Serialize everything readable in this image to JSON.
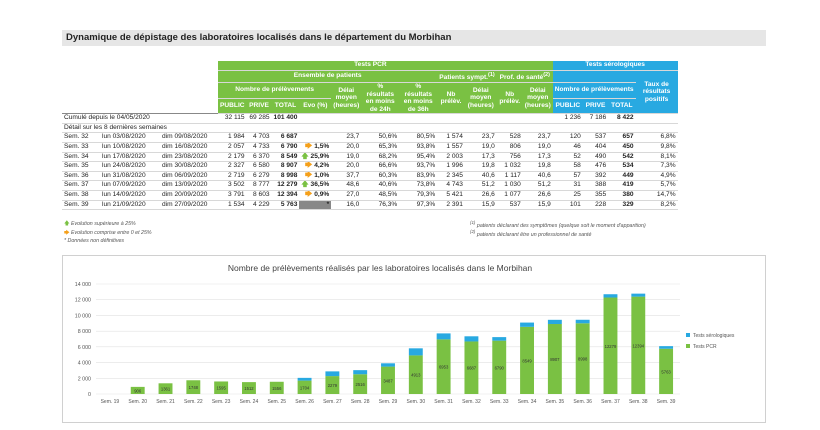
{
  "title": "Dynamique de dépistage des laboratoires localisés dans le département du Morbihan",
  "header": {
    "pcr": "Tests PCR",
    "sero": "Tests sérologiques",
    "ensemble": "Ensemble de patients",
    "nb_prel": "Nombre de prélèvements",
    "delai": "Délai moyen (heures)",
    "pct24": "% résultats en moins de 24h",
    "pct36": "% résultats en moins de 36h",
    "evo": "Evo (%)",
    "symp": "Patients sympt.",
    "symp_sup": "(1)",
    "prof": "Prof. de santé",
    "prof_sup": "(2)",
    "nbprel_short": "Nb prélèv.",
    "delai_short": "Délai moyen (heures)",
    "sero_nb": "Nombre de prélèvements",
    "taux": "Taux de résultats positifs",
    "public": "PUBLIC",
    "prive": "PRIVE",
    "total": "TOTAL"
  },
  "cumul": {
    "label": "Cumulé depuis le 04/05/2020",
    "public": "32 115",
    "prive": "69 285",
    "total": "101 400",
    "s_public": "1 236",
    "s_prive": "7 186",
    "s_total": "8 422"
  },
  "detail_label": "Détail sur les 8 dernières semaines",
  "rows": [
    {
      "sem": "Sem. 32",
      "from": "lun 03/08/2020",
      "to": "dim 09/08/2020",
      "pub": "1 984",
      "pri": "4 703",
      "tot": "6 687",
      "evo": "",
      "arrow": "",
      "delai": "23,7",
      "p24": "50,6%",
      "p36": "80,5%",
      "sn": "1 574",
      "sd": "23,7",
      "pn": "528",
      "pd": "23,7",
      "s_pub": "120",
      "s_pri": "537",
      "s_tot": "657",
      "taux": "6,8%"
    },
    {
      "sem": "Sem. 33",
      "from": "lun 10/08/2020",
      "to": "dim 16/08/2020",
      "pub": "2 057",
      "pri": "4 733",
      "tot": "6 790",
      "evo": "1,5%",
      "arrow": "right",
      "delai": "20,0",
      "p24": "65,3%",
      "p36": "93,8%",
      "sn": "1 557",
      "sd": "19,0",
      "pn": "806",
      "pd": "19,0",
      "s_pub": "46",
      "s_pri": "404",
      "s_tot": "450",
      "taux": "9,8%"
    },
    {
      "sem": "Sem. 34",
      "from": "lun 17/08/2020",
      "to": "dim 23/08/2020",
      "pub": "2 179",
      "pri": "6 370",
      "tot": "8 549",
      "evo": "25,9%",
      "arrow": "up",
      "delai": "19,0",
      "p24": "68,2%",
      "p36": "95,4%",
      "sn": "2 003",
      "sd": "17,3",
      "pn": "756",
      "pd": "17,3",
      "s_pub": "52",
      "s_pri": "490",
      "s_tot": "542",
      "taux": "8,1%"
    },
    {
      "sem": "Sem. 35",
      "from": "lun 24/08/2020",
      "to": "dim 30/08/2020",
      "pub": "2 327",
      "pri": "6 580",
      "tot": "8 907",
      "evo": "4,2%",
      "arrow": "right",
      "delai": "20,0",
      "p24": "66,6%",
      "p36": "93,7%",
      "sn": "1 996",
      "sd": "19,8",
      "pn": "1 032",
      "pd": "19,8",
      "s_pub": "58",
      "s_pri": "476",
      "s_tot": "534",
      "taux": "7,3%"
    },
    {
      "sem": "Sem. 36",
      "from": "lun 31/08/2020",
      "to": "dim 06/09/2020",
      "pub": "2 719",
      "pri": "6 279",
      "tot": "8 998",
      "evo": "1,0%",
      "arrow": "right",
      "delai": "37,7",
      "p24": "60,3%",
      "p36": "83,9%",
      "sn": "2 345",
      "sd": "40,6",
      "pn": "1 117",
      "pd": "40,6",
      "s_pub": "57",
      "s_pri": "392",
      "s_tot": "449",
      "taux": "4,9%"
    },
    {
      "sem": "Sem. 37",
      "from": "lun 07/09/2020",
      "to": "dim 13/09/2020",
      "pub": "3 502",
      "pri": "8 777",
      "tot": "12 279",
      "evo": "36,5%",
      "arrow": "up",
      "delai": "48,6",
      "p24": "40,6%",
      "p36": "73,8%",
      "sn": "4 743",
      "sd": "51,2",
      "pn": "1 030",
      "pd": "51,2",
      "s_pub": "31",
      "s_pri": "388",
      "s_tot": "419",
      "taux": "5,7%"
    },
    {
      "sem": "Sem. 38",
      "from": "lun 14/09/2020",
      "to": "dim 20/09/2020",
      "pub": "3 791",
      "pri": "8 603",
      "tot": "12 394",
      "evo": "0,9%",
      "arrow": "right",
      "delai": "27,0",
      "p24": "48,5%",
      "p36": "79,3%",
      "sn": "5 421",
      "sd": "26,6",
      "pn": "1 077",
      "pd": "26,6",
      "s_pub": "25",
      "s_pri": "355",
      "s_tot": "380",
      "taux": "14,7%"
    },
    {
      "sem": "Sem. 39",
      "from": "lun 21/09/2020",
      "to": "dim 27/09/2020",
      "pub": "1 534",
      "pri": "4 229",
      "tot": "5 763",
      "evo": "*",
      "arrow": "",
      "delai": "16,0",
      "p24": "76,3%",
      "p36": "97,3%",
      "sn": "2 391",
      "sd": "15,9",
      "pn": "537",
      "pd": "15,9",
      "s_pub": "101",
      "s_pri": "228",
      "s_tot": "329",
      "taux": "8,2%"
    }
  ],
  "notes": {
    "up": "Evolution supérieure à 25%",
    "right": "Evolution comprise entre 0 et 25%",
    "star": "* Données non définitives",
    "n1_sup": "(1)",
    "n1": "patients déclarant des symptômes (quelque soit le moment d'apparition)",
    "n2_sup": "(2)",
    "n2": "patients déclarant être un professionnel de santé"
  },
  "colors": {
    "green": "#7ac143",
    "blue": "#28a9e1",
    "orange": "#f5a01a"
  },
  "chart_data": {
    "type": "bar",
    "stacked": true,
    "title": "Nombre de prélèvements réalisés par les laboratoires localisés dans le Morbihan",
    "categories": [
      "Sem. 19",
      "Sem. 20",
      "Sem. 21",
      "Sem. 22",
      "Sem. 23",
      "Sem. 24",
      "Sem. 25",
      "Sem. 26",
      "Sem. 27",
      "Sem. 28",
      "Sem. 29",
      "Sem. 30",
      "Sem. 31",
      "Sem. 32",
      "Sem. 33",
      "Sem. 34",
      "Sem. 35",
      "Sem. 36",
      "Sem. 37",
      "Sem. 38",
      "Sem. 39"
    ],
    "series": [
      {
        "name": "Tests PCR",
        "values": [
          0,
          906,
          1361,
          1748,
          1595,
          1512,
          1556,
          1704,
          2279,
          2516,
          3487,
          4913,
          6953,
          6687,
          6790,
          8549,
          8907,
          8998,
          12279,
          12394,
          5763
        ]
      },
      {
        "name": "Tests sérologiques",
        "values": [
          0,
          0,
          0,
          0,
          0,
          0,
          0,
          350,
          600,
          520,
          420,
          900,
          760,
          657,
          450,
          542,
          534,
          449,
          419,
          380,
          329
        ]
      }
    ],
    "labels_pcr": [
      "",
      "906",
      "1361",
      "1748",
      "1595",
      "1512",
      "1556",
      "1704",
      "2279",
      "2516",
      "3487",
      "4913",
      "6953",
      "6687",
      "6790",
      "8549",
      "8907",
      "8998",
      "12279",
      "12394",
      "5763"
    ],
    "labels_sero": [
      "",
      "",
      "",
      "",
      "",
      "",
      "",
      "",
      "",
      "",
      "",
      "",
      "",
      "",
      "",
      "",
      "",
      "",
      "",
      "",
      ""
    ],
    "ylim": [
      0,
      14000
    ],
    "yticks": [
      "0",
      "2 000",
      "4 000",
      "6 000",
      "8 000",
      "10 000",
      "12 000",
      "14 000"
    ],
    "legend": "right",
    "grid": true
  }
}
